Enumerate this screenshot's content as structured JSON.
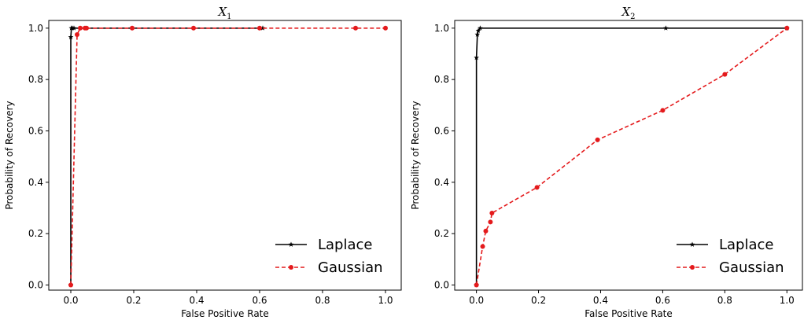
{
  "chart_data": [
    {
      "type": "line",
      "title": "X",
      "title_sub": "1",
      "xlabel": "False Positive Rate",
      "ylabel": "Probability of Recovery",
      "xlim": [
        -0.07,
        1.05
      ],
      "ylim": [
        -0.02,
        1.03
      ],
      "xticks": [
        "0.0",
        "0.2",
        "0.4",
        "0.6",
        "0.8",
        "1.0"
      ],
      "yticks": [
        "0.0",
        "0.2",
        "0.4",
        "0.6",
        "0.8",
        "1.0"
      ],
      "legend_position": "bottom-right",
      "series": [
        {
          "name": "Laplace",
          "color": "#000000",
          "style": "solid",
          "marker": "star",
          "x": [
            0.0,
            0.0,
            0.002,
            0.005,
            0.01,
            0.61
          ],
          "y": [
            0.0,
            0.965,
            1.0,
            1.0,
            1.0,
            1.0
          ]
        },
        {
          "name": "Gaussian",
          "color": "#e41a1c",
          "style": "dashed",
          "marker": "circle",
          "x": [
            0.0,
            0.02,
            0.03,
            0.045,
            0.05,
            0.195,
            0.39,
            0.6,
            0.905,
            1.0
          ],
          "y": [
            0.0,
            0.975,
            1.0,
            1.0,
            1.0,
            1.0,
            1.0,
            1.0,
            1.0,
            1.0
          ]
        }
      ]
    },
    {
      "type": "line",
      "title": "X",
      "title_sub": "2",
      "xlabel": "False Positive Rate",
      "ylabel": "Probability of Recovery",
      "xlim": [
        -0.07,
        1.05
      ],
      "ylim": [
        -0.02,
        1.03
      ],
      "xticks": [
        "0.0",
        "0.2",
        "0.4",
        "0.6",
        "0.8",
        "1.0"
      ],
      "yticks": [
        "0.0",
        "0.2",
        "0.4",
        "0.6",
        "0.8",
        "1.0"
      ],
      "legend_position": "bottom-right",
      "series": [
        {
          "name": "Laplace",
          "color": "#000000",
          "style": "solid",
          "marker": "star",
          "x": [
            0.0,
            0.0,
            0.003,
            0.006,
            0.012,
            0.61,
            1.0
          ],
          "y": [
            0.0,
            0.885,
            0.975,
            0.99,
            1.0,
            1.0,
            1.0
          ]
        },
        {
          "name": "Gaussian",
          "color": "#e41a1c",
          "style": "dashed",
          "marker": "circle",
          "x": [
            0.0,
            0.02,
            0.03,
            0.045,
            0.05,
            0.195,
            0.39,
            0.6,
            0.8,
            1.0
          ],
          "y": [
            0.0,
            0.15,
            0.21,
            0.245,
            0.28,
            0.38,
            0.565,
            0.68,
            0.82,
            1.0
          ]
        }
      ]
    }
  ]
}
